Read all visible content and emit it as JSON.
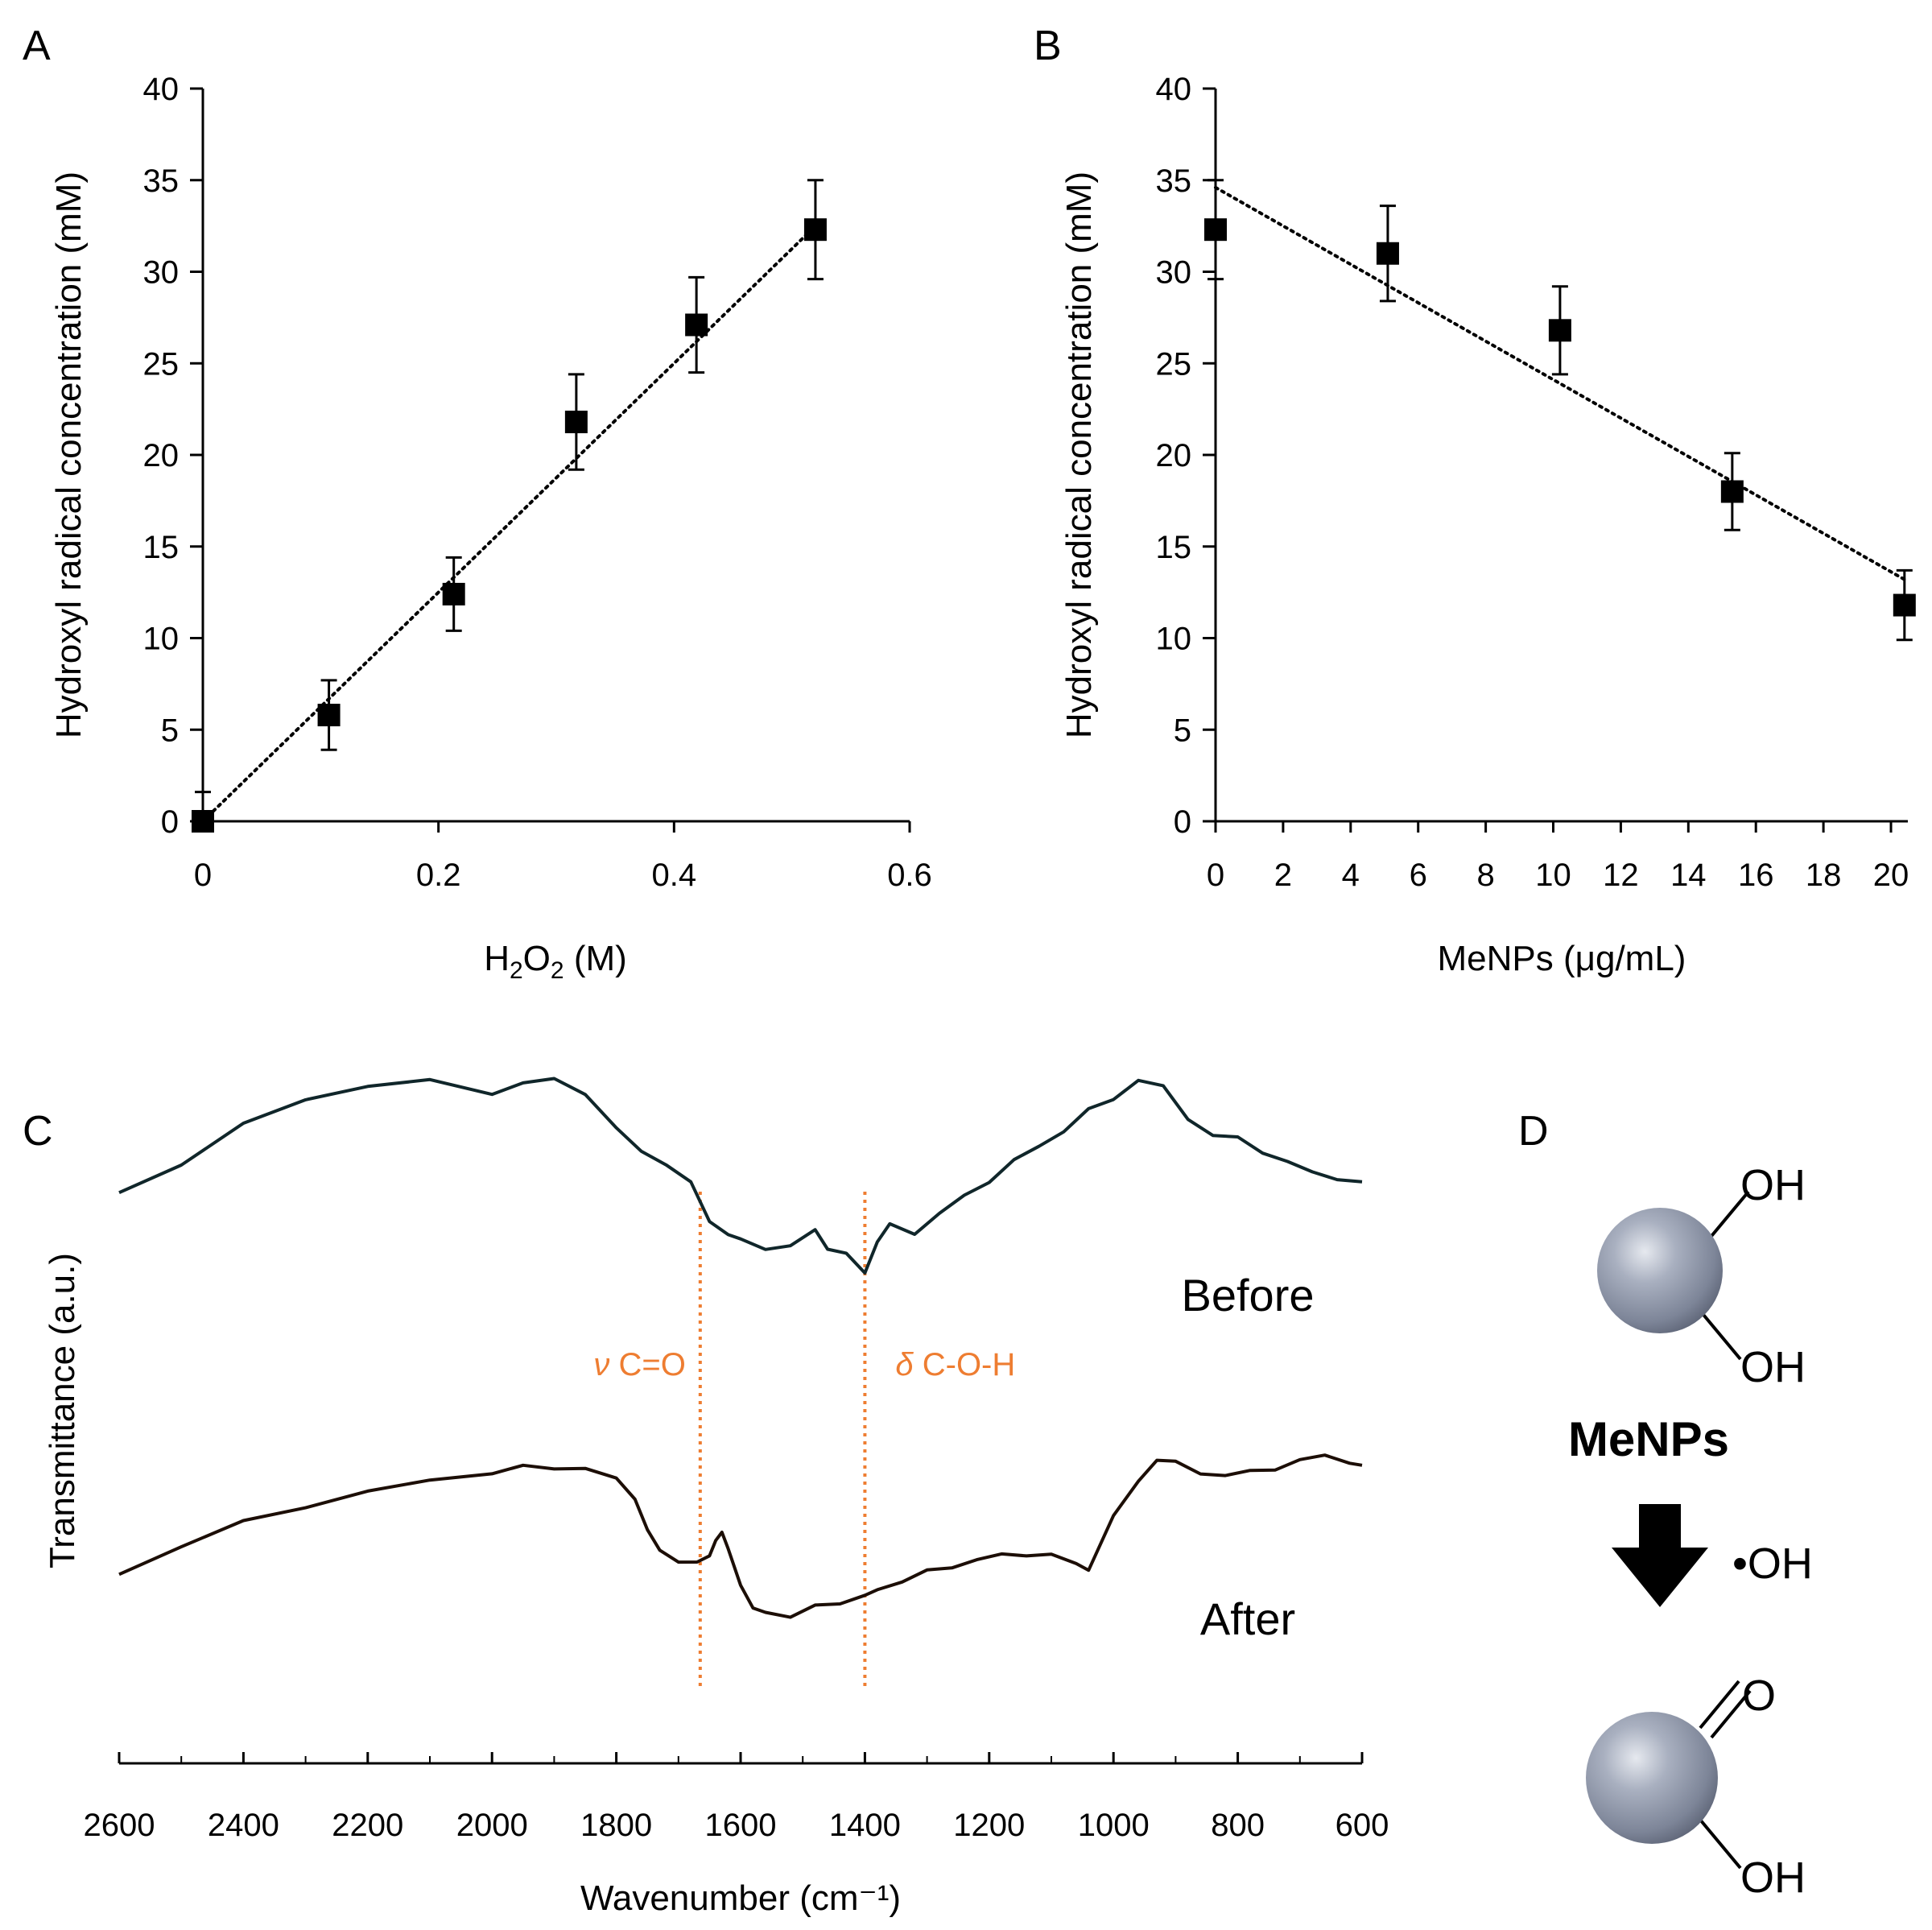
{
  "chart_data": [
    {
      "panel": "A",
      "type": "scatter",
      "xlabel_parts": [
        "H",
        "2",
        "O",
        "2",
        " (M)"
      ],
      "ylabel": "Hydroxyl radical concentration (mM)",
      "xlim": [
        0,
        0.6
      ],
      "ylim": [
        0,
        40
      ],
      "xticks": [
        "0",
        "0.2",
        "0.4",
        "0.6"
      ],
      "xtick_values": [
        0,
        0.2,
        0.4,
        0.6
      ],
      "yticks": [
        "0",
        "5",
        "10",
        "15",
        "20",
        "25",
        "30",
        "35",
        "40"
      ],
      "ytick_values": [
        0,
        5,
        10,
        15,
        20,
        25,
        30,
        35,
        40
      ],
      "x": [
        0,
        0.107,
        0.213,
        0.317,
        0.419,
        0.52
      ],
      "y": [
        0,
        5.8,
        12.4,
        21.8,
        27.1,
        32.3
      ],
      "error": [
        1.6,
        1.9,
        2.0,
        2.6,
        2.6,
        2.7
      ],
      "trendline": {
        "style": "dotted",
        "from": [
          0,
          0
        ],
        "to": [
          0.52,
          32.5
        ]
      }
    },
    {
      "panel": "B",
      "type": "scatter",
      "xlabel": "MeNPs (μg/mL)",
      "ylabel": "Hydroxyl radical concentration (mM)",
      "xlim": [
        0,
        20.5
      ],
      "ylim": [
        0,
        40
      ],
      "xticks": [
        "0",
        "2",
        "4",
        "6",
        "8",
        "10",
        "12",
        "14",
        "16",
        "18",
        "20"
      ],
      "xtick_values": [
        0,
        2,
        4,
        6,
        8,
        10,
        12,
        14,
        16,
        18,
        20
      ],
      "yticks": [
        "0",
        "5",
        "10",
        "15",
        "20",
        "25",
        "30",
        "35",
        "40"
      ],
      "ytick_values": [
        0,
        5,
        10,
        15,
        20,
        25,
        30,
        35,
        40
      ],
      "x": [
        0,
        5.1,
        10.2,
        15.3,
        20.4
      ],
      "y": [
        32.3,
        31.0,
        26.8,
        18.0,
        11.8
      ],
      "error": [
        2.7,
        2.6,
        2.4,
        2.1,
        1.9
      ],
      "trendline": {
        "style": "dotted",
        "from": [
          0,
          34.6
        ],
        "to": [
          20.4,
          13.2
        ]
      }
    },
    {
      "panel": "C",
      "type": "line",
      "xlabel": "Wavenumber (cm⁻¹)",
      "ylabel": "Transmittance (a.u.)",
      "xlim": [
        2600,
        600
      ],
      "xticks": [
        "2600",
        "2400",
        "2200",
        "2000",
        "1800",
        "1600",
        "1400",
        "1200",
        "1000",
        "800",
        "600"
      ],
      "xtick_values": [
        2600,
        2400,
        2200,
        2000,
        1800,
        1600,
        1400,
        1200,
        1000,
        800,
        600
      ],
      "series": [
        {
          "name": "Before",
          "color": "#10262a",
          "x": [
            2600,
            2500,
            2400,
            2300,
            2200,
            2100,
            2000,
            1950,
            1900,
            1850,
            1800,
            1760,
            1720,
            1680,
            1650,
            1620,
            1600,
            1560,
            1520,
            1480,
            1460,
            1430,
            1400,
            1380,
            1360,
            1320,
            1280,
            1240,
            1200,
            1160,
            1120,
            1080,
            1040,
            1000,
            960,
            920,
            880,
            840,
            800,
            760,
            720,
            680,
            640,
            600
          ],
          "y": [
            0.18,
            0.32,
            0.5,
            0.63,
            0.69,
            0.71,
            0.66,
            0.7,
            0.72,
            0.66,
            0.48,
            0.38,
            0.32,
            0.22,
            0.05,
            -0.02,
            -0.05,
            -0.08,
            -0.08,
            0.0,
            -0.08,
            -0.12,
            -0.2,
            -0.05,
            0.02,
            -0.01,
            0.08,
            0.16,
            0.24,
            0.33,
            0.4,
            0.48,
            0.57,
            0.63,
            0.72,
            0.68,
            0.54,
            0.45,
            0.44,
            0.38,
            0.32,
            0.28,
            0.25,
            0.22
          ]
        },
        {
          "name": "After",
          "color": "#1c0e06",
          "x": [
            2600,
            2500,
            2400,
            2300,
            2200,
            2100,
            2000,
            1950,
            1900,
            1850,
            1800,
            1770,
            1750,
            1730,
            1700,
            1670,
            1650,
            1640,
            1630,
            1620,
            1600,
            1580,
            1560,
            1520,
            1480,
            1440,
            1400,
            1380,
            1340,
            1300,
            1260,
            1220,
            1180,
            1140,
            1100,
            1060,
            1040,
            1000,
            960,
            930,
            900,
            860,
            820,
            780,
            740,
            700,
            660,
            620,
            600
          ],
          "y": [
            0.02,
            0.14,
            0.26,
            0.34,
            0.4,
            0.46,
            0.5,
            0.52,
            0.52,
            0.52,
            0.46,
            0.38,
            0.22,
            0.12,
            0.08,
            0.06,
            0.1,
            0.18,
            0.2,
            0.14,
            -0.04,
            -0.16,
            -0.16,
            -0.2,
            -0.14,
            -0.12,
            -0.1,
            -0.06,
            -0.02,
            0.02,
            0.05,
            0.08,
            0.1,
            0.11,
            0.1,
            0.06,
            0.04,
            0.28,
            0.46,
            0.56,
            0.54,
            0.5,
            0.48,
            0.5,
            0.52,
            0.55,
            0.58,
            0.55,
            0.52
          ]
        }
      ],
      "series_labels": [
        "Before",
        "After"
      ],
      "annotations": [
        {
          "symbol": "ν",
          "text": "C=O",
          "wavenumber": 1665
        },
        {
          "symbol": "δ",
          "text": "C-O-H",
          "wavenumber": 1400
        }
      ],
      "annotation_color": "#ee7d31"
    }
  ],
  "scheme": {
    "panel": "D",
    "top_groups": [
      "OH",
      "OH"
    ],
    "top_label": "MeNPs",
    "reagent": "•OH",
    "bottom_groups": [
      "O",
      "OH"
    ],
    "sphere_color": "#98a0b2",
    "arrow_color": "#000000"
  }
}
